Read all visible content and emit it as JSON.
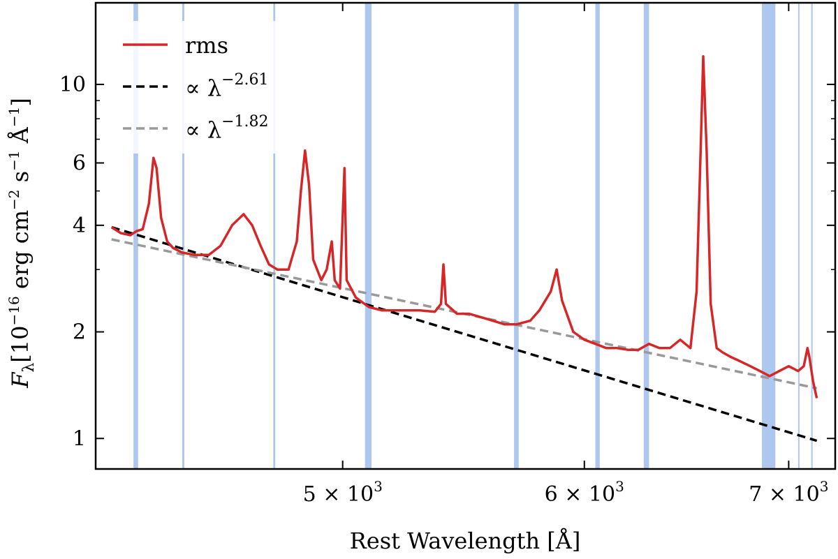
{
  "chart_data": {
    "type": "line",
    "xscale": "log",
    "yscale": "log",
    "xlim": [
      4150,
      7250
    ],
    "ylim": [
      0.82,
      17
    ],
    "xlabel": "Rest Wavelength [Å]",
    "ylabel": "F_λ [10^−16 erg cm^−2 s^−1 Å^−1]",
    "ylabel_parts": {
      "symbol": "F",
      "subscript": "λ",
      "pre": "[10",
      "exp1": "−16",
      "mid1": " erg cm",
      "exp2": "−2",
      "mid2": " s",
      "exp3": "−1",
      "mid3": " Å",
      "exp4": "−1",
      "post": "]"
    },
    "x_ticks": [
      {
        "value": 5000,
        "mantissa": "5 × 10",
        "exponent": "3"
      },
      {
        "value": 6000,
        "mantissa": "6 × 10",
        "exponent": "3"
      },
      {
        "value": 7000,
        "mantissa": "7 × 10",
        "exponent": "3"
      }
    ],
    "y_ticks": [
      {
        "value": 1,
        "label": "1"
      },
      {
        "value": 2,
        "label": "2"
      },
      {
        "value": 4,
        "label": "4"
      },
      {
        "value": 6,
        "label": "6"
      },
      {
        "value": 10,
        "label": "10"
      }
    ],
    "legend": {
      "position": "top-left",
      "entries": [
        {
          "label": "rms",
          "style": "solid",
          "color": "#d62728"
        },
        {
          "label_pre": "∝ λ",
          "label_exp": "−2.61",
          "style": "dashed",
          "color": "#000000"
        },
        {
          "label_pre": "∝ λ",
          "label_exp": "−1.82",
          "style": "dashed",
          "color": "#999999"
        }
      ]
    },
    "masked_bands": [
      [
        4270,
        4285
      ],
      [
        4430,
        4437
      ],
      [
        4745,
        4752
      ],
      [
        5085,
        5110
      ],
      [
        5690,
        5710
      ],
      [
        6050,
        6070
      ],
      [
        6275,
        6300
      ],
      [
        6860,
        6930
      ],
      [
        7050,
        7055
      ],
      [
        7120,
        7125
      ]
    ],
    "series": [
      {
        "name": "rms",
        "color": "#d62728",
        "points": [
          [
            4200,
            3.95
          ],
          [
            4230,
            3.8
          ],
          [
            4260,
            3.75
          ],
          [
            4280,
            3.85
          ],
          [
            4300,
            3.9
          ],
          [
            4320,
            4.6
          ],
          [
            4335,
            6.2
          ],
          [
            4345,
            5.8
          ],
          [
            4360,
            4.2
          ],
          [
            4380,
            3.6
          ],
          [
            4400,
            3.45
          ],
          [
            4430,
            3.35
          ],
          [
            4470,
            3.3
          ],
          [
            4520,
            3.3
          ],
          [
            4560,
            3.5
          ],
          [
            4600,
            4.0
          ],
          [
            4640,
            4.3
          ],
          [
            4670,
            4.0
          ],
          [
            4700,
            3.5
          ],
          [
            4730,
            3.1
          ],
          [
            4760,
            3.0
          ],
          [
            4800,
            3.0
          ],
          [
            4830,
            3.6
          ],
          [
            4845,
            5.0
          ],
          [
            4860,
            6.5
          ],
          [
            4875,
            5.2
          ],
          [
            4890,
            3.2
          ],
          [
            4920,
            2.8
          ],
          [
            4940,
            3.0
          ],
          [
            4959,
            3.6
          ],
          [
            4970,
            2.8
          ],
          [
            4990,
            2.65
          ],
          [
            5007,
            5.8
          ],
          [
            5015,
            2.8
          ],
          [
            5050,
            2.5
          ],
          [
            5100,
            2.35
          ],
          [
            5150,
            2.3
          ],
          [
            5200,
            2.3
          ],
          [
            5250,
            2.3
          ],
          [
            5300,
            2.3
          ],
          [
            5360,
            2.28
          ],
          [
            5385,
            2.4
          ],
          [
            5395,
            3.1
          ],
          [
            5405,
            2.4
          ],
          [
            5450,
            2.25
          ],
          [
            5500,
            2.25
          ],
          [
            5550,
            2.2
          ],
          [
            5600,
            2.15
          ],
          [
            5650,
            2.1
          ],
          [
            5700,
            2.1
          ],
          [
            5760,
            2.15
          ],
          [
            5800,
            2.3
          ],
          [
            5850,
            2.6
          ],
          [
            5876,
            3.0
          ],
          [
            5900,
            2.45
          ],
          [
            5950,
            2.0
          ],
          [
            6000,
            1.9
          ],
          [
            6050,
            1.85
          ],
          [
            6100,
            1.8
          ],
          [
            6150,
            1.8
          ],
          [
            6200,
            1.78
          ],
          [
            6250,
            1.78
          ],
          [
            6300,
            1.85
          ],
          [
            6350,
            1.8
          ],
          [
            6400,
            1.8
          ],
          [
            6450,
            1.9
          ],
          [
            6500,
            1.8
          ],
          [
            6530,
            2.6
          ],
          [
            6550,
            6.5
          ],
          [
            6563,
            12.0
          ],
          [
            6580,
            6.5
          ],
          [
            6600,
            2.4
          ],
          [
            6630,
            1.8
          ],
          [
            6660,
            1.75
          ],
          [
            6700,
            1.7
          ],
          [
            6750,
            1.65
          ],
          [
            6800,
            1.6
          ],
          [
            6850,
            1.55
          ],
          [
            6900,
            1.5
          ],
          [
            6950,
            1.55
          ],
          [
            7000,
            1.6
          ],
          [
            7050,
            1.55
          ],
          [
            7080,
            1.6
          ],
          [
            7100,
            1.8
          ],
          [
            7110,
            1.7
          ],
          [
            7130,
            1.45
          ],
          [
            7150,
            1.3
          ]
        ]
      },
      {
        "name": "power-law -2.61",
        "color": "#000000",
        "style": "dashed",
        "x_range": [
          4200,
          7150
        ],
        "exponent": -2.61,
        "y_at_start": 3.95
      },
      {
        "name": "power-law -1.82",
        "color": "#999999",
        "style": "dashed",
        "x_range": [
          4200,
          7150
        ],
        "exponent": -1.82,
        "y_at_start": 3.65
      }
    ]
  }
}
